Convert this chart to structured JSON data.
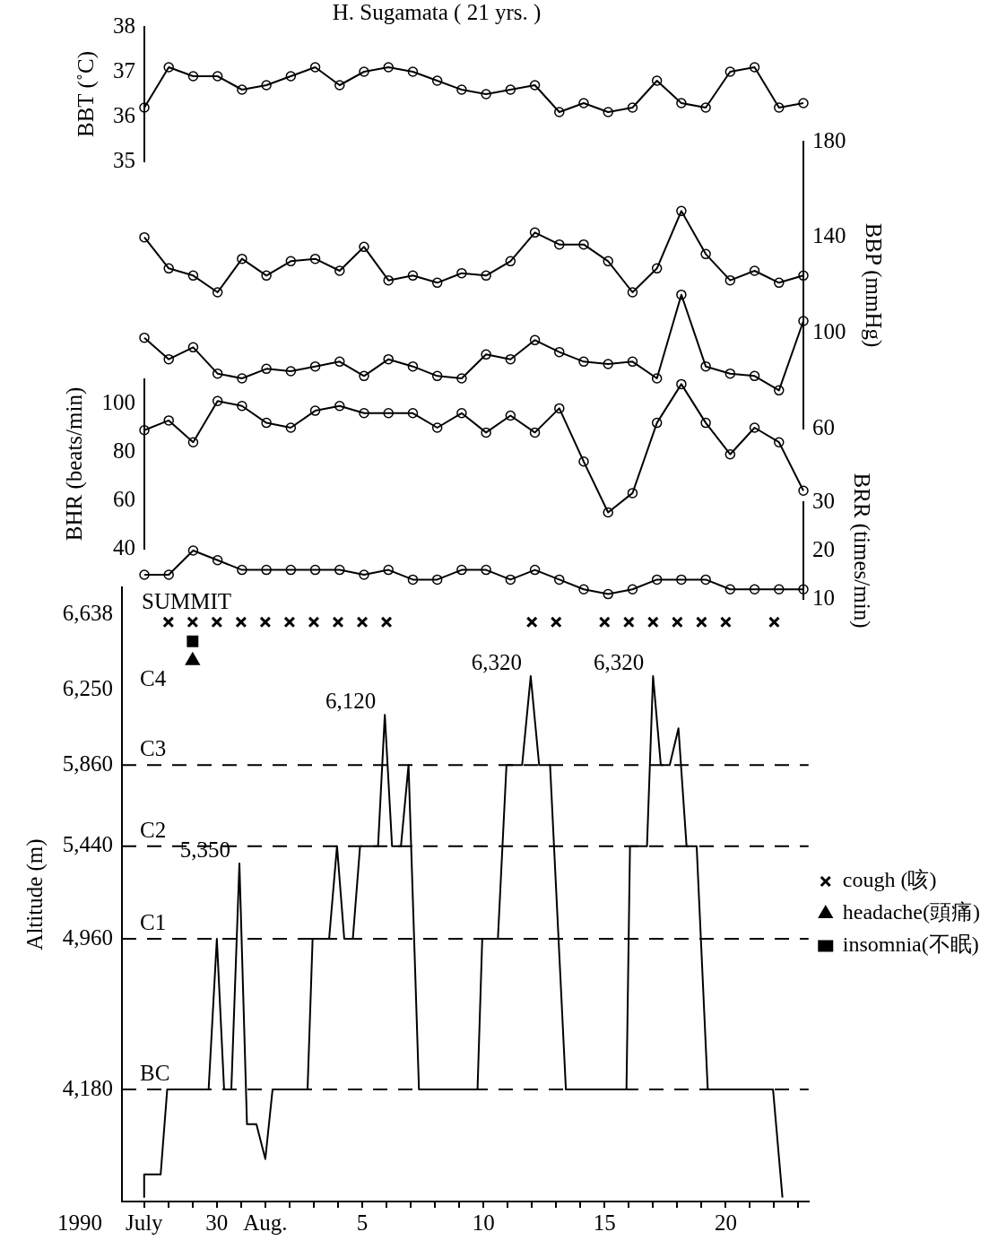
{
  "chart_data": [
    {
      "type": "line",
      "title": "H. Sugamata ( 21 yrs. )",
      "ylabel": "BBT (˚C)",
      "tick_labels": "y",
      "marker": "circle",
      "categories": [
        null,
        null,
        null,
        null,
        null,
        null,
        null,
        null,
        null,
        null,
        null,
        null,
        null,
        null,
        null,
        null,
        null,
        null,
        null,
        null,
        null,
        null,
        null,
        null,
        null,
        null,
        null,
        null
      ],
      "ylim": [
        35,
        38
      ],
      "yticks": [
        35,
        36,
        37,
        38
      ],
      "series": [
        {
          "color": "#000000",
          "values": [
            36.2,
            37.1,
            36.9,
            36.9,
            36.6,
            36.7,
            36.9,
            37.1,
            36.7,
            37.0,
            37.1,
            37.0,
            36.8,
            36.6,
            36.5,
            36.6,
            36.7,
            36.1,
            36.3,
            36.1,
            36.2,
            36.8,
            36.3,
            36.2,
            37.0,
            37.1,
            36.2,
            36.3
          ]
        }
      ]
    },
    {
      "type": "line",
      "ylabel": "BBP (mmHg)",
      "tick_labels": "y",
      "marker": "circle",
      "categories": [
        null,
        null,
        null,
        null,
        null,
        null,
        null,
        null,
        null,
        null,
        null,
        null,
        null,
        null,
        null,
        null,
        null,
        null,
        null,
        null,
        null,
        null,
        null,
        null,
        null,
        null,
        null,
        null
      ],
      "ylim": [
        60,
        180
      ],
      "yticks": [
        60,
        100,
        140,
        180
      ],
      "series": [
        {
          "color": "#000000",
          "values": [
            140,
            127,
            124,
            117,
            131,
            124,
            130,
            131,
            126,
            136,
            122,
            124,
            121,
            125,
            124,
            130,
            142,
            137,
            137,
            130,
            117,
            127,
            151,
            133,
            122,
            126,
            121,
            124
          ]
        },
        {
          "color": "#000000",
          "values": [
            98,
            89,
            94,
            83,
            81,
            85,
            84,
            86,
            88,
            82,
            89,
            86,
            82,
            81,
            91,
            89,
            97,
            92,
            88,
            87,
            88,
            81,
            116,
            86,
            83,
            82,
            76,
            105
          ]
        }
      ]
    },
    {
      "type": "line",
      "ylabel": "BHR (beats/min)",
      "tick_labels": "y",
      "marker": "circle",
      "categories": [
        null,
        null,
        null,
        null,
        null,
        null,
        null,
        null,
        null,
        null,
        null,
        null,
        null,
        null,
        null,
        null,
        null,
        null,
        null,
        null,
        null,
        null,
        null,
        null,
        null,
        null,
        null,
        null
      ],
      "ylim": [
        40,
        110
      ],
      "yticks": [
        40,
        60,
        80,
        100
      ],
      "series": [
        {
          "color": "#000000",
          "values": [
            89,
            93,
            84,
            101,
            99,
            92,
            90,
            97,
            99,
            96,
            96,
            96,
            90,
            96,
            88,
            95,
            88,
            98,
            76,
            55,
            63,
            92,
            108,
            92,
            79,
            90,
            84,
            64
          ]
        }
      ]
    },
    {
      "type": "line",
      "ylabel": "BRR (times/min)",
      "tick_labels": "y",
      "marker": "circle",
      "categories": [
        null,
        null,
        null,
        null,
        null,
        null,
        null,
        null,
        null,
        null,
        null,
        null,
        null,
        null,
        null,
        null,
        null,
        null,
        null,
        null,
        null,
        null,
        null,
        null,
        null,
        null,
        null,
        null
      ],
      "ylim": [
        10,
        30
      ],
      "yticks": [
        10,
        20,
        30
      ],
      "series": [
        {
          "color": "#000000",
          "values": [
            15,
            15,
            20,
            18,
            16,
            16,
            16,
            16,
            16,
            15,
            16,
            14,
            14,
            16,
            16,
            14,
            16,
            14,
            12,
            11,
            12,
            14,
            14,
            14,
            12,
            12,
            12,
            12
          ]
        }
      ]
    },
    {
      "type": "line",
      "ylabel": "Altitude (m)",
      "xlabel": "1990",
      "legend": "right",
      "xlim": [
        "1990-07-26T02:00",
        "1990-08-23T10:00"
      ],
      "xticks": [
        {
          "value": "1990-07-27",
          "label": "July"
        },
        {
          "value": "1990-07-28",
          "label": null
        },
        {
          "value": "1990-07-29",
          "label": null
        },
        {
          "value": "1990-07-30",
          "label": "30"
        },
        {
          "value": "1990-07-31",
          "label": null
        },
        {
          "value": "1990-08-01",
          "label": "Aug."
        },
        {
          "value": "1990-08-02",
          "label": null
        },
        {
          "value": "1990-08-03",
          "label": null
        },
        {
          "value": "1990-08-04",
          "label": null
        },
        {
          "value": "1990-08-05",
          "label": "5"
        },
        {
          "value": "1990-08-06",
          "label": null
        },
        {
          "value": "1990-08-07",
          "label": null
        },
        {
          "value": "1990-08-08",
          "label": null
        },
        {
          "value": "1990-08-09",
          "label": null
        },
        {
          "value": "1990-08-10",
          "label": "10"
        },
        {
          "value": "1990-08-11",
          "label": null
        },
        {
          "value": "1990-08-12",
          "label": null
        },
        {
          "value": "1990-08-13",
          "label": null
        },
        {
          "value": "1990-08-14",
          "label": null
        },
        {
          "value": "1990-08-15",
          "label": "15"
        },
        {
          "value": "1990-08-16",
          "label": null
        },
        {
          "value": "1990-08-17",
          "label": null
        },
        {
          "value": "1990-08-18",
          "label": null
        },
        {
          "value": "1990-08-19",
          "label": null
        },
        {
          "value": "1990-08-20",
          "label": "20"
        },
        {
          "value": "1990-08-21",
          "label": null
        },
        {
          "value": "1990-08-22",
          "label": null
        },
        {
          "value": "1990-08-23",
          "label": null
        }
      ],
      "ylim": [
        3600,
        6780
      ],
      "yticks": [
        {
          "value": 4180,
          "label": "4,180"
        },
        {
          "value": 4960,
          "label": "4,960"
        },
        {
          "value": 5440,
          "label": "5,440"
        },
        {
          "value": 5860,
          "label": "5,860"
        },
        {
          "value": 6250,
          "label": "6,250"
        },
        {
          "value": 6638,
          "label": "6,638"
        }
      ],
      "ref_lines": [
        {
          "axis": "y",
          "value": 4180,
          "label": "BC",
          "line_style": "dashed"
        },
        {
          "axis": "y",
          "value": 4960,
          "label": "C1",
          "line_style": "dashed"
        },
        {
          "axis": "y",
          "value": 5440,
          "label": "C2",
          "line_style": "dashed"
        },
        {
          "axis": "y",
          "value": 5860,
          "label": "C3",
          "line_style": "dashed"
        }
      ],
      "annotations": [
        "C4",
        "SUMMIT",
        {
          "text": "5,350",
          "x": "1990-07-30T22:20",
          "y": 5350
        },
        {
          "text": "6,120",
          "x": "1990-08-05T22:20",
          "y": 6120
        },
        {
          "text": "6,320",
          "x": "1990-08-11T22:50",
          "y": 6320
        },
        {
          "text": "6,320",
          "x": "1990-08-17T00:00",
          "y": 6320
        }
      ],
      "series": [
        {
          "color": "#000000",
          "marker": "none",
          "x": [
            "1990-07-27T00:00",
            "1990-07-27T00:00",
            "1990-07-27T16:20",
            "1990-07-27T22:50",
            "1990-07-29T15:50",
            "1990-07-30T00:00",
            "1990-07-30T07:10",
            "1990-07-30T14:20",
            "1990-07-30T22:20",
            "1990-07-31T05:50",
            "1990-07-31T15:10",
            "1990-08-01T00:00",
            "1990-08-01T07:10",
            "1990-08-02T17:50",
            "1990-08-02T22:50",
            "1990-08-03T15:10",
            "1990-08-03T23:00",
            "1990-08-04T06:10",
            "1990-08-04T14:40",
            "1990-08-04T21:50",
            "1990-08-05T15:40",
            "1990-08-05T22:20",
            "1990-08-06T05:30",
            "1990-08-06T14:20",
            "1990-08-06T21:50",
            "1990-08-07T08:10",
            "1990-08-09T18:10",
            "1990-08-09T22:50",
            "1990-08-10T14:20",
            "1990-08-10T22:50",
            "1990-08-11T14:20",
            "1990-08-11T22:50",
            "1990-08-12T07:10",
            "1990-08-12T18:00",
            "1990-08-13T09:40",
            "1990-08-15T21:40",
            "1990-08-16T01:10",
            "1990-08-16T18:00",
            "1990-08-17T00:00",
            "1990-08-17T07:40",
            "1990-08-17T16:30",
            "1990-08-18T01:10",
            "1990-08-18T09:10",
            "1990-08-18T19:10",
            "1990-08-19T06:10",
            "1990-08-21T22:50",
            "1990-08-22T08:10"
          ],
          "values": [
            3620,
            3740,
            3740,
            4180,
            4180,
            4960,
            4180,
            4180,
            5350,
            4000,
            4000,
            3820,
            4180,
            4180,
            4960,
            4960,
            5440,
            4960,
            4960,
            5440,
            5440,
            6120,
            5440,
            5440,
            5860,
            4180,
            4180,
            4960,
            4960,
            5860,
            5860,
            6320,
            5860,
            5860,
            4180,
            4180,
            5440,
            5440,
            6320,
            5860,
            5860,
            6050,
            5440,
            5440,
            4180,
            4180,
            3620
          ]
        },
        {
          "name": "cough (咳)",
          "type": "scatter",
          "marker": "cross",
          "color": "#000000",
          "x": [
            "1990-07-28",
            "1990-07-29",
            "1990-07-30",
            "1990-07-31",
            "1990-08-01",
            "1990-08-02",
            "1990-08-03",
            "1990-08-04",
            "1990-08-05",
            "1990-08-06",
            "1990-08-12",
            "1990-08-13",
            "1990-08-15",
            "1990-08-16",
            "1990-08-17",
            "1990-08-18",
            "1990-08-19",
            "1990-08-20",
            "1990-08-22"
          ],
          "values": [
            6600,
            6600,
            6600,
            6600,
            6600,
            6600,
            6600,
            6600,
            6600,
            6600,
            6600,
            6600,
            6600,
            6600,
            6600,
            6600,
            6600,
            6600,
            6600
          ]
        },
        {
          "name": "headache(頭痛)",
          "type": "scatter",
          "marker": "triangle",
          "color": "#000000",
          "x": [
            "1990-07-29"
          ],
          "values": [
            6400
          ]
        },
        {
          "name": "insomnia(不眠)",
          "type": "scatter",
          "marker": "square",
          "color": "#000000",
          "x": [
            "1990-07-29"
          ],
          "values": [
            6500
          ]
        }
      ]
    }
  ]
}
